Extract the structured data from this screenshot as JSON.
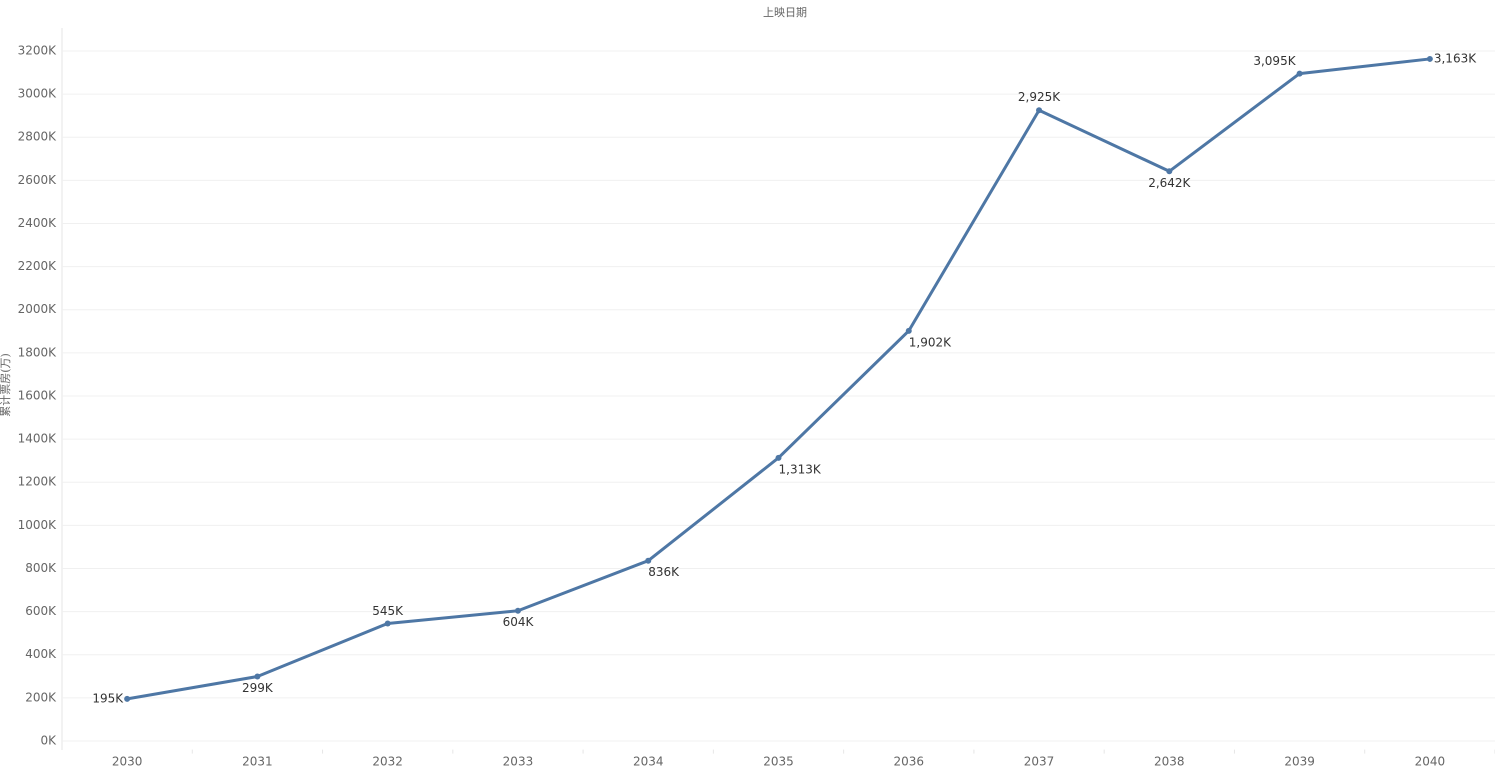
{
  "chart_data": {
    "type": "line",
    "title": "上映日期",
    "y_label": "累计票房(万)",
    "categories": [
      "2030",
      "2031",
      "2032",
      "2033",
      "2034",
      "2035",
      "2036",
      "2037",
      "2038",
      "2039",
      "2040"
    ],
    "series": [
      {
        "name": "累计票房(万)",
        "color": "#4e77a5",
        "values": [
          195,
          299,
          545,
          604,
          836,
          1313,
          1902,
          2925,
          2642,
          3095,
          3163
        ],
        "value_labels": [
          "195K",
          "299K",
          "545K",
          "604K",
          "836K",
          "1,313K",
          "1,902K",
          "2,925K",
          "2,642K",
          "3,095K",
          "3,163K"
        ]
      }
    ],
    "ylim": [
      -40,
      3300
    ],
    "yticks": [
      {
        "value": 0,
        "label": "0K"
      },
      {
        "value": 200,
        "label": "200K"
      },
      {
        "value": 400,
        "label": "400K"
      },
      {
        "value": 600,
        "label": "600K"
      },
      {
        "value": 800,
        "label": "800K"
      },
      {
        "value": 1000,
        "label": "1000K"
      },
      {
        "value": 1200,
        "label": "1200K"
      },
      {
        "value": 1400,
        "label": "1400K"
      },
      {
        "value": 1600,
        "label": "1600K"
      },
      {
        "value": 1800,
        "label": "1800K"
      },
      {
        "value": 2000,
        "label": "2000K"
      },
      {
        "value": 2200,
        "label": "2200K"
      },
      {
        "value": 2400,
        "label": "2400K"
      },
      {
        "value": 2600,
        "label": "2600K"
      },
      {
        "value": 2800,
        "label": "2800K"
      },
      {
        "value": 3000,
        "label": "3000K"
      },
      {
        "value": 3200,
        "label": "3200K"
      }
    ],
    "grid": true
  }
}
